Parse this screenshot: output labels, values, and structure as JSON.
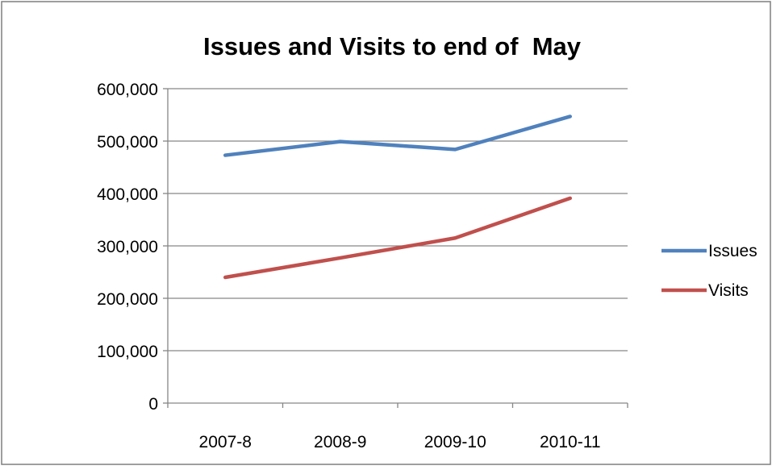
{
  "chart_data": {
    "type": "line",
    "title": "Issues and Visits to end of  May",
    "xlabel": "",
    "ylabel": "",
    "categories": [
      "2007-8",
      "2008-9",
      "2009-10",
      "2010-11"
    ],
    "ylim": [
      0,
      600000
    ],
    "yticks": [
      0,
      100000,
      200000,
      300000,
      400000,
      500000,
      600000
    ],
    "ytick_labels": [
      "0",
      "100,000",
      "200,000",
      "300,000",
      "400,000",
      "500,000",
      "600,000"
    ],
    "grid": true,
    "legend_position": "right",
    "series": [
      {
        "name": "Issues",
        "color": "#4F81BD",
        "values": [
          473000,
          499000,
          484000,
          547000
        ]
      },
      {
        "name": "Visits",
        "color": "#C0504D",
        "values": [
          240000,
          277000,
          315000,
          391000
        ]
      }
    ]
  }
}
